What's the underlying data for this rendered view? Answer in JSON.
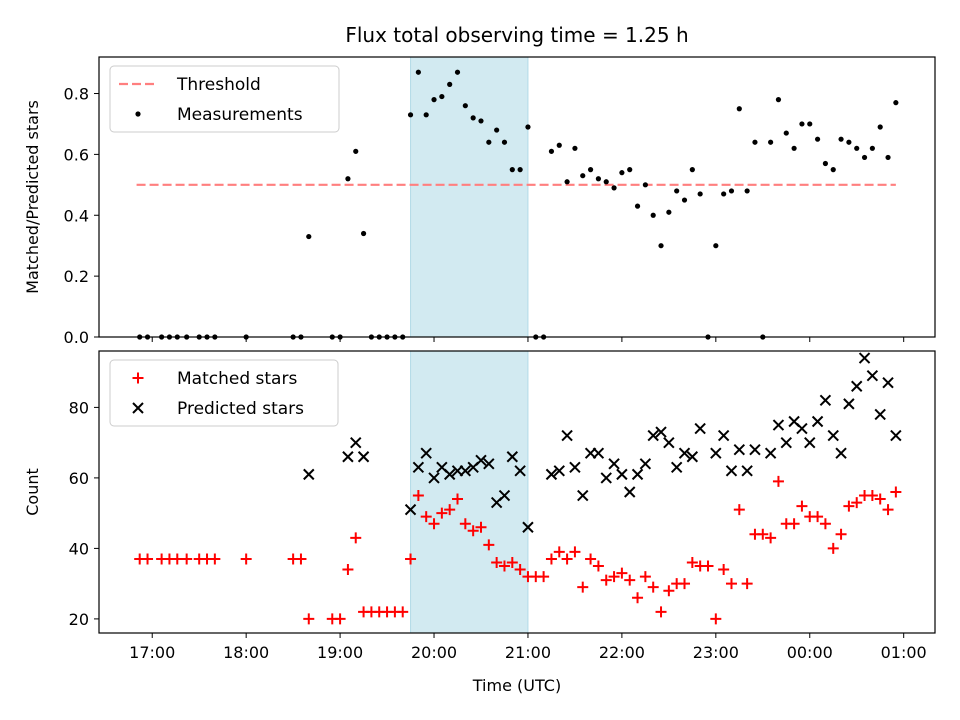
{
  "chart_data": [
    {
      "type": "scatter",
      "title": "Flux total observing time = 1.25 h",
      "ylabel": "Matched/Predicted stars",
      "xlabel": "",
      "ylim": [
        0,
        0.92
      ],
      "xlim": [
        "16:26",
        "01:20"
      ],
      "yticks": [
        "0.0",
        "0.2",
        "0.4",
        "0.6",
        "0.8"
      ],
      "grid": false,
      "legend_position": "top-left",
      "highlight_span": {
        "start": "19:45",
        "end": "21:00",
        "color": "#add8e6"
      },
      "series": [
        {
          "name": "Threshold",
          "style": "dashed-line",
          "color": "#ff7f7f",
          "x": [
            "16:50",
            "00:55"
          ],
          "y": [
            0.5,
            0.5
          ]
        },
        {
          "name": "Measurements",
          "style": "dot",
          "color": "#000000",
          "points": [
            [
              "16:52",
              0
            ],
            [
              "16:57",
              0
            ],
            [
              "17:06",
              0
            ],
            [
              "17:11",
              0
            ],
            [
              "17:16",
              0
            ],
            [
              "17:22",
              0
            ],
            [
              "17:30",
              0
            ],
            [
              "17:35",
              0
            ],
            [
              "17:40",
              0
            ],
            [
              "18:00",
              0
            ],
            [
              "18:30",
              0
            ],
            [
              "18:35",
              0
            ],
            [
              "18:40",
              0.33
            ],
            [
              "18:55",
              0
            ],
            [
              "19:00",
              0
            ],
            [
              "19:05",
              0.52
            ],
            [
              "19:10",
              0.61
            ],
            [
              "19:15",
              0.34
            ],
            [
              "19:20",
              0
            ],
            [
              "19:25",
              0
            ],
            [
              "19:30",
              0
            ],
            [
              "19:35",
              0
            ],
            [
              "19:40",
              0
            ],
            [
              "19:45",
              0.73
            ],
            [
              "19:50",
              0.87
            ],
            [
              "19:55",
              0.73
            ],
            [
              "20:00",
              0.78
            ],
            [
              "20:05",
              0.79
            ],
            [
              "20:10",
              0.83
            ],
            [
              "20:15",
              0.87
            ],
            [
              "20:20",
              0.76
            ],
            [
              "20:25",
              0.72
            ],
            [
              "20:30",
              0.71
            ],
            [
              "20:35",
              0.64
            ],
            [
              "20:40",
              0.68
            ],
            [
              "20:45",
              0.64
            ],
            [
              "20:50",
              0.55
            ],
            [
              "20:55",
              0.55
            ],
            [
              "21:00",
              0.69
            ],
            [
              "21:05",
              0
            ],
            [
              "21:10",
              0
            ],
            [
              "21:15",
              0.61
            ],
            [
              "21:20",
              0.63
            ],
            [
              "21:25",
              0.51
            ],
            [
              "21:30",
              0.62
            ],
            [
              "21:35",
              0.53
            ],
            [
              "21:40",
              0.55
            ],
            [
              "21:45",
              0.52
            ],
            [
              "21:50",
              0.51
            ],
            [
              "21:55",
              0.49
            ],
            [
              "22:00",
              0.54
            ],
            [
              "22:05",
              0.55
            ],
            [
              "22:10",
              0.43
            ],
            [
              "22:15",
              0.5
            ],
            [
              "22:20",
              0.4
            ],
            [
              "22:25",
              0.3
            ],
            [
              "22:30",
              0.41
            ],
            [
              "22:35",
              0.48
            ],
            [
              "22:40",
              0.45
            ],
            [
              "22:45",
              0.55
            ],
            [
              "22:50",
              0.47
            ],
            [
              "22:55",
              0
            ],
            [
              "23:00",
              0.3
            ],
            [
              "23:05",
              0.47
            ],
            [
              "23:10",
              0.48
            ],
            [
              "23:15",
              0.75
            ],
            [
              "23:20",
              0.48
            ],
            [
              "23:25",
              0.64
            ],
            [
              "23:30",
              0
            ],
            [
              "23:35",
              0.64
            ],
            [
              "23:40",
              0.78
            ],
            [
              "23:45",
              0.67
            ],
            [
              "23:50",
              0.62
            ],
            [
              "23:55",
              0.7
            ],
            [
              "00:00",
              0.7
            ],
            [
              "00:05",
              0.65
            ],
            [
              "00:10",
              0.57
            ],
            [
              "00:15",
              0.55
            ],
            [
              "00:20",
              0.65
            ],
            [
              "00:25",
              0.64
            ],
            [
              "00:30",
              0.62
            ],
            [
              "00:35",
              0.59
            ],
            [
              "00:40",
              0.62
            ],
            [
              "00:45",
              0.69
            ],
            [
              "00:50",
              0.59
            ],
            [
              "00:55",
              0.77
            ]
          ]
        }
      ]
    },
    {
      "type": "scatter",
      "title": "",
      "ylabel": "Count",
      "xlabel": "Time (UTC)",
      "ylim": [
        16,
        96
      ],
      "xlim": [
        "16:26",
        "01:20"
      ],
      "yticks": [
        "20",
        "40",
        "60",
        "80"
      ],
      "xticks": [
        "17:00",
        "18:00",
        "19:00",
        "20:00",
        "21:00",
        "22:00",
        "23:00",
        "00:00",
        "01:00"
      ],
      "grid": false,
      "legend_position": "top-left",
      "highlight_span": {
        "start": "19:45",
        "end": "21:00",
        "color": "#add8e6"
      },
      "series": [
        {
          "name": "Matched stars",
          "style": "plus",
          "color": "#ff0000",
          "points": [
            [
              "16:52",
              37
            ],
            [
              "16:57",
              37
            ],
            [
              "17:06",
              37
            ],
            [
              "17:11",
              37
            ],
            [
              "17:16",
              37
            ],
            [
              "17:22",
              37
            ],
            [
              "17:30",
              37
            ],
            [
              "17:35",
              37
            ],
            [
              "17:40",
              37
            ],
            [
              "18:00",
              37
            ],
            [
              "18:30",
              37
            ],
            [
              "18:35",
              37
            ],
            [
              "18:40",
              20
            ],
            [
              "18:55",
              20
            ],
            [
              "19:00",
              20
            ],
            [
              "19:05",
              34
            ],
            [
              "19:10",
              43
            ],
            [
              "19:15",
              22
            ],
            [
              "19:20",
              22
            ],
            [
              "19:25",
              22
            ],
            [
              "19:30",
              22
            ],
            [
              "19:35",
              22
            ],
            [
              "19:40",
              22
            ],
            [
              "19:45",
              37
            ],
            [
              "19:50",
              55
            ],
            [
              "19:55",
              49
            ],
            [
              "20:00",
              47
            ],
            [
              "20:05",
              50
            ],
            [
              "20:10",
              51
            ],
            [
              "20:15",
              54
            ],
            [
              "20:20",
              47
            ],
            [
              "20:25",
              45
            ],
            [
              "20:30",
              46
            ],
            [
              "20:35",
              41
            ],
            [
              "20:40",
              36
            ],
            [
              "20:45",
              35
            ],
            [
              "20:50",
              36
            ],
            [
              "20:55",
              34
            ],
            [
              "21:00",
              32
            ],
            [
              "21:05",
              32
            ],
            [
              "21:10",
              32
            ],
            [
              "21:15",
              37
            ],
            [
              "21:20",
              39
            ],
            [
              "21:25",
              37
            ],
            [
              "21:30",
              39
            ],
            [
              "21:35",
              29
            ],
            [
              "21:40",
              37
            ],
            [
              "21:45",
              35
            ],
            [
              "21:50",
              31
            ],
            [
              "21:55",
              32
            ],
            [
              "22:00",
              33
            ],
            [
              "22:05",
              31
            ],
            [
              "22:10",
              26
            ],
            [
              "22:15",
              32
            ],
            [
              "22:20",
              29
            ],
            [
              "22:25",
              22
            ],
            [
              "22:30",
              28
            ],
            [
              "22:35",
              30
            ],
            [
              "22:40",
              30
            ],
            [
              "22:45",
              36
            ],
            [
              "22:50",
              35
            ],
            [
              "22:55",
              35
            ],
            [
              "23:00",
              20
            ],
            [
              "23:05",
              34
            ],
            [
              "23:10",
              30
            ],
            [
              "23:15",
              51
            ],
            [
              "23:20",
              30
            ],
            [
              "23:25",
              44
            ],
            [
              "23:30",
              44
            ],
            [
              "23:35",
              43
            ],
            [
              "23:40",
              59
            ],
            [
              "23:45",
              47
            ],
            [
              "23:50",
              47
            ],
            [
              "23:55",
              52
            ],
            [
              "00:00",
              49
            ],
            [
              "00:05",
              49
            ],
            [
              "00:10",
              47
            ],
            [
              "00:15",
              40
            ],
            [
              "00:20",
              44
            ],
            [
              "00:25",
              52
            ],
            [
              "00:30",
              53
            ],
            [
              "00:35",
              55
            ],
            [
              "00:40",
              55
            ],
            [
              "00:45",
              54
            ],
            [
              "00:50",
              51
            ],
            [
              "00:55",
              56
            ]
          ]
        },
        {
          "name": "Predicted stars",
          "style": "x",
          "color": "#000000",
          "points": [
            [
              "18:40",
              61
            ],
            [
              "19:05",
              66
            ],
            [
              "19:10",
              70
            ],
            [
              "19:15",
              66
            ],
            [
              "19:45",
              51
            ],
            [
              "19:50",
              63
            ],
            [
              "19:55",
              67
            ],
            [
              "20:00",
              60
            ],
            [
              "20:05",
              63
            ],
            [
              "20:10",
              61
            ],
            [
              "20:15",
              62
            ],
            [
              "20:20",
              62
            ],
            [
              "20:25",
              63
            ],
            [
              "20:30",
              65
            ],
            [
              "20:35",
              64
            ],
            [
              "20:40",
              53
            ],
            [
              "20:45",
              55
            ],
            [
              "20:50",
              66
            ],
            [
              "20:55",
              62
            ],
            [
              "21:00",
              46
            ],
            [
              "21:15",
              61
            ],
            [
              "21:20",
              62
            ],
            [
              "21:25",
              72
            ],
            [
              "21:30",
              63
            ],
            [
              "21:35",
              55
            ],
            [
              "21:40",
              67
            ],
            [
              "21:45",
              67
            ],
            [
              "21:50",
              60
            ],
            [
              "21:55",
              64
            ],
            [
              "22:00",
              61
            ],
            [
              "22:05",
              56
            ],
            [
              "22:10",
              61
            ],
            [
              "22:15",
              64
            ],
            [
              "22:20",
              72
            ],
            [
              "22:25",
              73
            ],
            [
              "22:30",
              70
            ],
            [
              "22:35",
              63
            ],
            [
              "22:40",
              67
            ],
            [
              "22:45",
              66
            ],
            [
              "22:50",
              74
            ],
            [
              "23:00",
              67
            ],
            [
              "23:05",
              72
            ],
            [
              "23:10",
              62
            ],
            [
              "23:15",
              68
            ],
            [
              "23:20",
              62
            ],
            [
              "23:25",
              68
            ],
            [
              "23:35",
              67
            ],
            [
              "23:40",
              75
            ],
            [
              "23:45",
              70
            ],
            [
              "23:50",
              76
            ],
            [
              "23:55",
              74
            ],
            [
              "00:00",
              70
            ],
            [
              "00:05",
              76
            ],
            [
              "00:10",
              82
            ],
            [
              "00:15",
              72
            ],
            [
              "00:20",
              67
            ],
            [
              "00:25",
              81
            ],
            [
              "00:30",
              86
            ],
            [
              "00:35",
              94
            ],
            [
              "00:40",
              89
            ],
            [
              "00:45",
              78
            ],
            [
              "00:50",
              87
            ],
            [
              "00:55",
              72
            ]
          ]
        }
      ]
    }
  ]
}
